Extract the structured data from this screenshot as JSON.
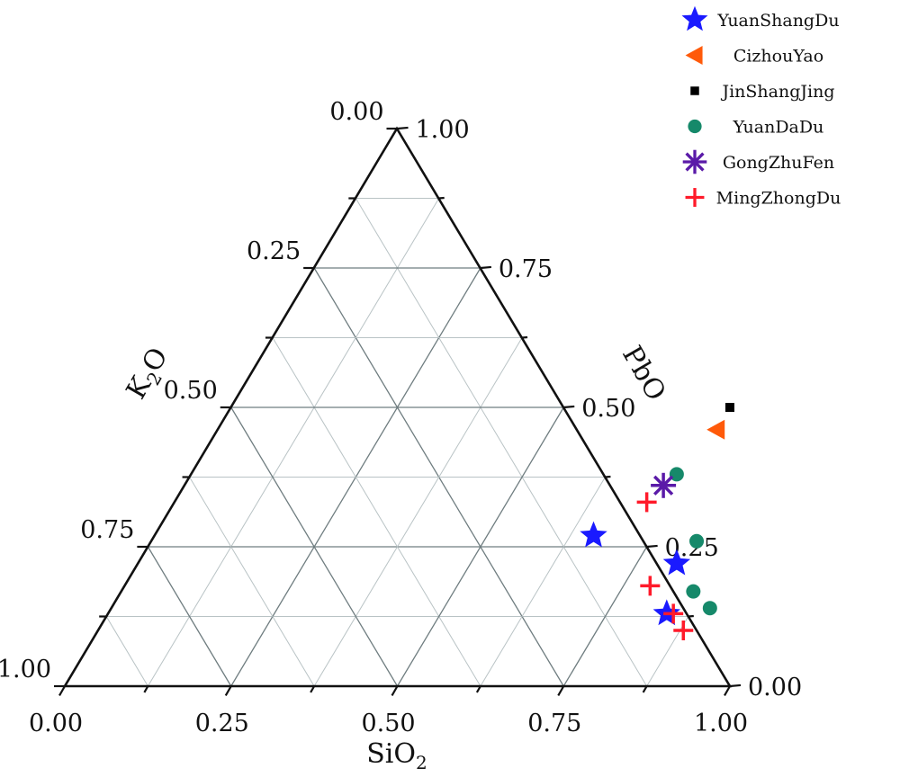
{
  "chart_data": {
    "type": "scatter",
    "subtype": "ternary",
    "title": "",
    "axes": {
      "bottom": {
        "label": "SiO",
        "label_sub": "2",
        "ticks": [
          "0.00",
          "0.25",
          "0.50",
          "0.75",
          "1.00"
        ]
      },
      "left": {
        "label": "K",
        "label_sub": "2",
        "label_tail": "O",
        "ticks": [
          "0.00",
          "0.25",
          "0.50",
          "0.75",
          "1.00"
        ]
      },
      "right": {
        "label": "PbO",
        "ticks": [
          "0.00",
          "0.25",
          "0.50",
          "0.75",
          "1.00"
        ]
      }
    },
    "grid": true,
    "grid_major_step": 0.25,
    "grid_minor_step": 0.125,
    "legend_position": "top-right",
    "series": [
      {
        "name": "YuanShangDu",
        "marker": "star",
        "color": "#1a1aff",
        "points": [
          {
            "SiO2": 0.66,
            "PbO": 0.27
          },
          {
            "SiO2": 0.81,
            "PbO": 0.22
          },
          {
            "SiO2": 0.84,
            "PbO": 0.13
          }
        ]
      },
      {
        "name": "CizhouYao",
        "marker": "triangle-left",
        "color": "#ff5a0a",
        "points": [
          {
            "SiO2": 0.75,
            "PbO": 0.46
          }
        ]
      },
      {
        "name": "JinShangJing",
        "marker": "square",
        "color": "#000000",
        "points": [
          {
            "SiO2": 0.75,
            "PbO": 0.5
          }
        ]
      },
      {
        "name": "YuanDaDu",
        "marker": "circle",
        "color": "#16896a",
        "points": [
          {
            "SiO2": 0.73,
            "PbO": 0.38
          },
          {
            "SiO2": 0.82,
            "PbO": 0.26
          },
          {
            "SiO2": 0.86,
            "PbO": 0.17
          },
          {
            "SiO2": 0.9,
            "PbO": 0.14
          }
        ]
      },
      {
        "name": "GongZhuFen",
        "marker": "asterisk",
        "color": "#5a1aa8",
        "points": [
          {
            "SiO2": 0.72,
            "PbO": 0.36
          }
        ]
      },
      {
        "name": "MingZhongDu",
        "marker": "plus",
        "color": "#ff1a2a",
        "points": [
          {
            "SiO2": 0.71,
            "PbO": 0.33
          },
          {
            "SiO2": 0.79,
            "PbO": 0.18
          },
          {
            "SiO2": 0.85,
            "PbO": 0.13
          },
          {
            "SiO2": 0.88,
            "PbO": 0.1
          }
        ]
      }
    ]
  }
}
